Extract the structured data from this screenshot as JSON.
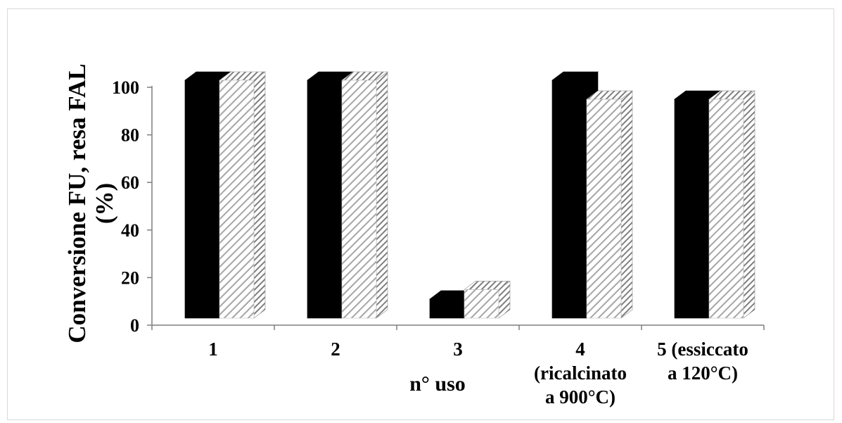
{
  "chart_data": {
    "type": "bar",
    "style": "3d-clustered",
    "categories": [
      [
        "1"
      ],
      [
        "2"
      ],
      [
        "3"
      ],
      [
        "4",
        "(ricalcinato",
        "a 900°C)"
      ],
      [
        "5 (essiccato",
        "a 120°C)"
      ]
    ],
    "series": [
      {
        "values": [
          100,
          100,
          8,
          100,
          92
        ],
        "fill": "#000000",
        "pattern": "solid"
      },
      {
        "values": [
          100,
          100,
          12,
          92,
          92
        ],
        "fill": "#ffffff",
        "pattern": "diagonal-hatch",
        "hatch_color": "#9a9a9a"
      }
    ],
    "ylim": [
      0,
      100
    ],
    "yticks": [
      0,
      20,
      40,
      60,
      80,
      100
    ],
    "ylabel": [
      "Conversione FU, resa FAL",
      "(%)"
    ],
    "xlabel": "n° uso",
    "grid": false,
    "legend": "none"
  }
}
